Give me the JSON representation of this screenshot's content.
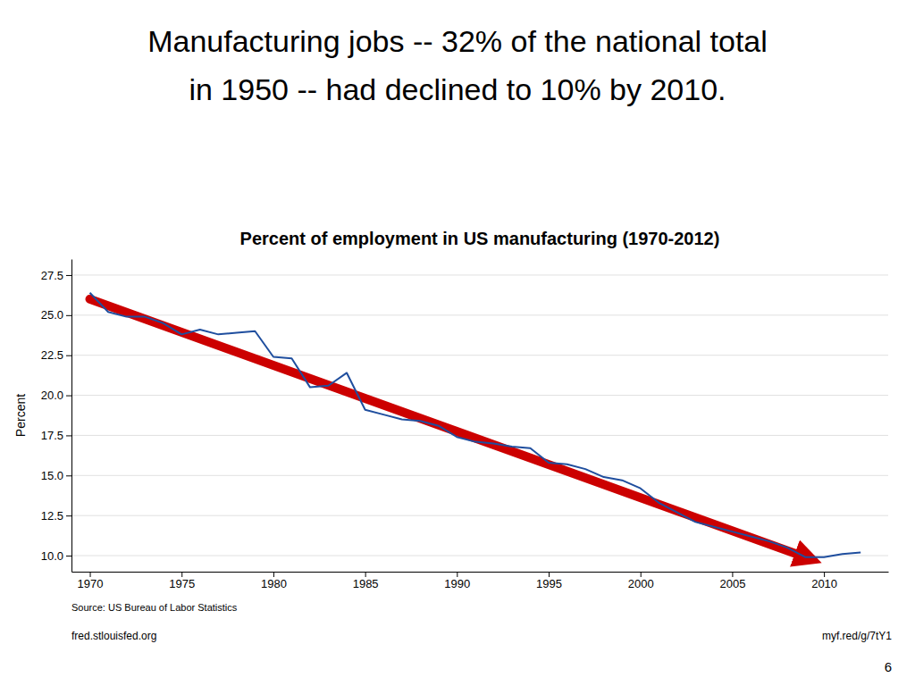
{
  "title_lines": [
    "Manufacturing jobs -- 32% of the national total",
    "in 1950 -- had declined to 10% by 2010."
  ],
  "source": "Source: US Bureau of Labor Statistics",
  "footer_left": "fred.stlouisfed.org",
  "footer_right": "myf.red/g/7tY1",
  "page_number": "6",
  "chart_data": {
    "type": "line",
    "title": "Percent of employment in US manufacturing (1970-2012)",
    "y_label": "Percent",
    "series": [
      {
        "x": [
          1970,
          2009
        ],
        "values": [
          26.0,
          9.9
        ],
        "color": "#cc0000",
        "marker": "arrow"
      },
      {
        "x": [
          1970,
          1971,
          1972,
          1973,
          1974,
          1975,
          1976,
          1977,
          1978,
          1979,
          1980,
          1981,
          1982,
          1983,
          1984,
          1985,
          1986,
          1987,
          1988,
          1989,
          1990,
          1991,
          1992,
          1993,
          1994,
          1995,
          1996,
          1997,
          1998,
          1999,
          2000,
          2001,
          2002,
          2003,
          2004,
          2005,
          2006,
          2007,
          2008,
          2009,
          2010,
          2011,
          2012
        ],
        "values": [
          26.4,
          25.2,
          24.9,
          24.9,
          24.5,
          23.8,
          24.1,
          23.8,
          23.9,
          24.0,
          22.4,
          22.3,
          20.5,
          20.6,
          21.4,
          19.1,
          18.8,
          18.5,
          18.4,
          18.1,
          17.4,
          17.1,
          17.0,
          16.8,
          16.7,
          15.8,
          15.7,
          15.4,
          14.9,
          14.7,
          14.2,
          13.3,
          12.7,
          12.1,
          11.8,
          11.5,
          11.2,
          10.9,
          10.5,
          9.9,
          9.9,
          10.1,
          10.2
        ],
        "color": "#1f4e9e"
      }
    ],
    "xlim": [
      1969.0,
      2013.5
    ],
    "ylim": [
      9.0,
      28.5
    ],
    "xticks": [
      1970,
      1975,
      1980,
      1985,
      1990,
      1995,
      2000,
      2005,
      2010
    ],
    "yticks": [
      {
        "value": 10.0,
        "label": "10.0"
      },
      12.5,
      {
        "value": 15.0,
        "label": "15.0"
      },
      17.5,
      {
        "value": 20.0,
        "label": "20.0"
      },
      22.5,
      {
        "value": 25.0,
        "label": "25.0"
      },
      27.5
    ],
    "grid": true
  }
}
